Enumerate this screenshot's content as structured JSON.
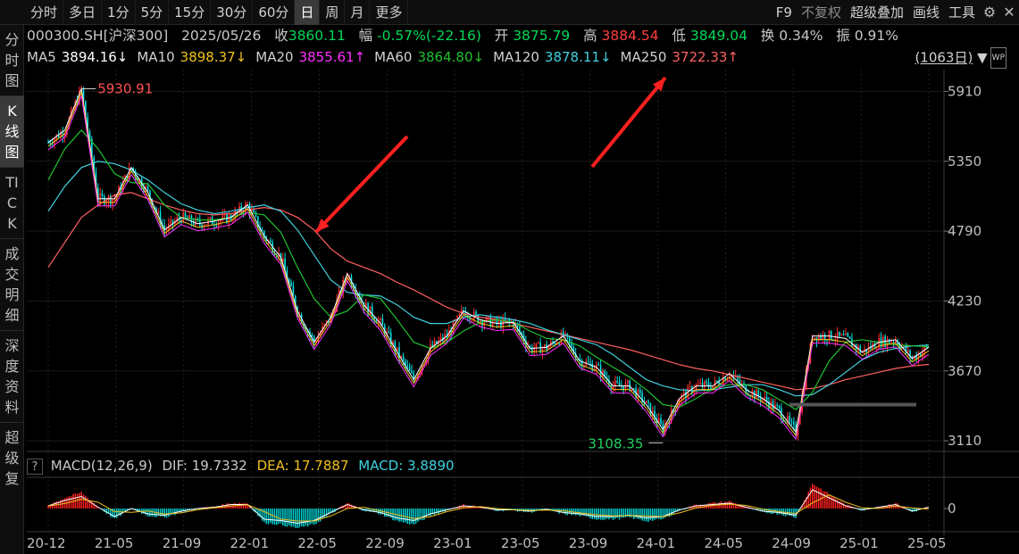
{
  "toolbar": {
    "periods": [
      "分时",
      "多日",
      "1分",
      "5分",
      "15分",
      "30分",
      "60分",
      "日",
      "周",
      "月",
      "更多"
    ],
    "active_period": "日",
    "tools": [
      "F9",
      "不复权",
      "超级叠加",
      "画线",
      "工具"
    ]
  },
  "sidebar": {
    "items": [
      "分时图",
      "K线图",
      "TICK",
      "成交明细",
      "深度资料",
      "超级复"
    ],
    "active": "K线图"
  },
  "quote": {
    "code": "000300.SH[沪深300]",
    "date": "2025/05/26",
    "close_label": "收",
    "close": "3860.11",
    "change_label": "幅",
    "change": "-0.57%(-22.16)",
    "open_label": "开",
    "open": "3875.79",
    "high_label": "高",
    "high": "3884.54",
    "low_label": "低",
    "low": "3849.04",
    "turnover_label": "换",
    "turnover": "0.34%",
    "amplitude_label": "振",
    "amplitude": "0.91%"
  },
  "ma_legend": [
    {
      "name": "MA5",
      "value": "3894.16↓",
      "color": "#ffffff"
    },
    {
      "name": "MA10",
      "value": "3898.37↓",
      "color": "#f0c020"
    },
    {
      "name": "MA20",
      "value": "3855.61↑",
      "color": "#ff30ff"
    },
    {
      "name": "MA60",
      "value": "3864.80↓",
      "color": "#20c030"
    },
    {
      "name": "MA120",
      "value": "3878.11↓",
      "color": "#40d0e0"
    },
    {
      "name": "MA250",
      "value": "3722.33↑",
      "color": "#ff6060"
    }
  ],
  "period_count": "(1063日)",
  "macd": {
    "name": "MACD(12,26,9)",
    "dif_label": "DIF:",
    "dif": "19.7332",
    "dea_label": "DEA:",
    "dea": "17.7887",
    "macd_label": "MACD:",
    "macd": "3.8890",
    "dif_color": "#ffffff",
    "dea_color": "#f0c020",
    "macd_color": "#40d0e0"
  },
  "chart_data": {
    "type": "line",
    "y_ticks": [
      5910,
      5350,
      4790,
      4230,
      3670,
      3110
    ],
    "ylim": [
      3025,
      6085
    ],
    "x_ticks": [
      "20-12",
      "21-05",
      "21-09",
      "22-01",
      "22-05",
      "22-09",
      "23-01",
      "23-05",
      "23-09",
      "24-01",
      "24-05",
      "24-09",
      "25-01",
      "25-05"
    ],
    "annotations": [
      {
        "text": "5930.91",
        "value": 5930.91,
        "color": "#ff5050"
      },
      {
        "text": "3108.35",
        "value": 3108.35,
        "color": "#20d060"
      }
    ],
    "price_path": [
      {
        "x": "20-12",
        "y": 5500
      },
      {
        "x": "21-01",
        "y": 5600
      },
      {
        "x": "21-02",
        "y": 5930
      },
      {
        "x": "21-03",
        "y": 5050
      },
      {
        "x": "21-04",
        "y": 5050
      },
      {
        "x": "21-05",
        "y": 5300
      },
      {
        "x": "21-06",
        "y": 5100
      },
      {
        "x": "21-07",
        "y": 4800
      },
      {
        "x": "21-08",
        "y": 4900
      },
      {
        "x": "21-09",
        "y": 4850
      },
      {
        "x": "21-10",
        "y": 4870
      },
      {
        "x": "21-11",
        "y": 4900
      },
      {
        "x": "21-12",
        "y": 5000
      },
      {
        "x": "22-01",
        "y": 4750
      },
      {
        "x": "22-02",
        "y": 4580
      },
      {
        "x": "22-03",
        "y": 4150
      },
      {
        "x": "22-04",
        "y": 3900
      },
      {
        "x": "22-05",
        "y": 4100
      },
      {
        "x": "22-06",
        "y": 4450
      },
      {
        "x": "22-07",
        "y": 4200
      },
      {
        "x": "22-08",
        "y": 4050
      },
      {
        "x": "22-09",
        "y": 3820
      },
      {
        "x": "22-10",
        "y": 3600
      },
      {
        "x": "22-11",
        "y": 3850
      },
      {
        "x": "22-12",
        "y": 3950
      },
      {
        "x": "23-01",
        "y": 4150
      },
      {
        "x": "23-02",
        "y": 4080
      },
      {
        "x": "23-03",
        "y": 4050
      },
      {
        "x": "23-04",
        "y": 4060
      },
      {
        "x": "23-05",
        "y": 3850
      },
      {
        "x": "23-06",
        "y": 3860
      },
      {
        "x": "23-07",
        "y": 3950
      },
      {
        "x": "23-08",
        "y": 3750
      },
      {
        "x": "23-09",
        "y": 3700
      },
      {
        "x": "23-10",
        "y": 3550
      },
      {
        "x": "23-11",
        "y": 3550
      },
      {
        "x": "23-12",
        "y": 3400
      },
      {
        "x": "24-01",
        "y": 3200
      },
      {
        "x": "24-02",
        "y": 3450
      },
      {
        "x": "24-03",
        "y": 3550
      },
      {
        "x": "24-04",
        "y": 3550
      },
      {
        "x": "24-05",
        "y": 3650
      },
      {
        "x": "24-06",
        "y": 3520
      },
      {
        "x": "24-07",
        "y": 3450
      },
      {
        "x": "24-08",
        "y": 3350
      },
      {
        "x": "24-09",
        "y": 3180
      },
      {
        "x": "24-10",
        "y": 3950
      },
      {
        "x": "24-11",
        "y": 3950
      },
      {
        "x": "24-12",
        "y": 3930
      },
      {
        "x": "25-01",
        "y": 3820
      },
      {
        "x": "25-02",
        "y": 3900
      },
      {
        "x": "25-03",
        "y": 3920
      },
      {
        "x": "25-04",
        "y": 3770
      },
      {
        "x": "25-05",
        "y": 3860
      }
    ],
    "series": [
      {
        "name": "MA250",
        "color": "#ff6060",
        "values": [
          4500,
          4700,
          4900,
          5000,
          5080,
          5100,
          5050,
          5000,
          4960,
          4930,
          4920,
          4930,
          4960,
          4980,
          4960,
          4900,
          4800,
          4650,
          4550,
          4500,
          4450,
          4380,
          4320,
          4250,
          4180,
          4130,
          4100,
          4080,
          4050,
          4020,
          3990,
          3960,
          3930,
          3900,
          3870,
          3840,
          3800,
          3760,
          3720,
          3690,
          3670,
          3640,
          3610,
          3580,
          3550,
          3520,
          3530,
          3560,
          3600,
          3630,
          3660,
          3690,
          3710,
          3722
        ]
      },
      {
        "name": "MA120",
        "color": "#40d0e0",
        "values": [
          4950,
          5150,
          5300,
          5350,
          5330,
          5280,
          5200,
          5100,
          5010,
          4960,
          4930,
          4950,
          4980,
          5000,
          4950,
          4800,
          4600,
          4400,
          4300,
          4280,
          4270,
          4200,
          4100,
          4050,
          4050,
          4100,
          4120,
          4100,
          4080,
          4050,
          4000,
          3960,
          3920,
          3880,
          3800,
          3700,
          3600,
          3550,
          3520,
          3510,
          3520,
          3540,
          3560,
          3560,
          3520,
          3470,
          3480,
          3560,
          3660,
          3760,
          3820,
          3850,
          3870,
          3878
        ]
      },
      {
        "name": "MA60",
        "color": "#20c030",
        "values": [
          5200,
          5450,
          5600,
          5450,
          5250,
          5180,
          5170,
          5000,
          4900,
          4880,
          4880,
          4900,
          4940,
          4920,
          4780,
          4500,
          4250,
          4100,
          4150,
          4280,
          4250,
          4080,
          3900,
          3850,
          3900,
          3990,
          4060,
          4080,
          4060,
          3990,
          3930,
          3920,
          3870,
          3780,
          3700,
          3620,
          3520,
          3400,
          3380,
          3450,
          3530,
          3560,
          3560,
          3520,
          3440,
          3360,
          3500,
          3750,
          3900,
          3920,
          3900,
          3880,
          3870,
          3865
        ]
      }
    ],
    "macd_path": [
      20,
      60,
      90,
      10,
      -60,
      0,
      -40,
      -50,
      -20,
      0,
      10,
      30,
      30,
      -80,
      -90,
      -110,
      -90,
      -30,
      30,
      -10,
      -30,
      -70,
      -90,
      -40,
      -10,
      20,
      10,
      -10,
      -10,
      -20,
      -5,
      -30,
      -40,
      -60,
      -60,
      -50,
      -70,
      -60,
      -10,
      20,
      30,
      40,
      10,
      -20,
      -30,
      -50,
      140,
      80,
      20,
      -10,
      10,
      30,
      -20,
      10
    ]
  }
}
